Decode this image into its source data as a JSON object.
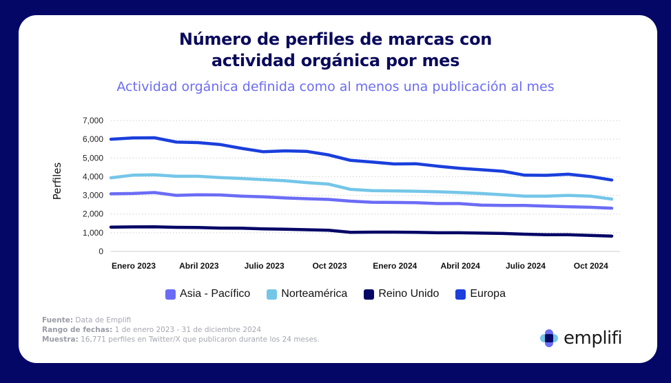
{
  "title_line1": "Número de perfiles de marcas con",
  "title_line2": "actividad orgánica por mes",
  "subtitle": "Actividad orgánica definida como al menos una publicación al mes",
  "footer": {
    "source_label": "Fuente:",
    "source_value": "Data de Emplifi",
    "range_label": "Rango de fechas:",
    "range_value": "1 de enero 2023 - 31 de diciembre 2024",
    "sample_label": "Muestra:",
    "sample_value": "16,771 perfiles en Twitter/X que publicaron durante los 24 meses."
  },
  "logo": {
    "text": "emplifi",
    "icon": "emplifi-logo-icon"
  },
  "chart_data": {
    "type": "line",
    "title": "Número de perfiles de marcas con actividad orgánica por mes",
    "subtitle": "Actividad orgánica definida como al menos una publicación al mes",
    "xlabel": "",
    "ylabel": "Perfiles",
    "ylim": [
      0,
      7000
    ],
    "yticks": [
      0,
      1000,
      2000,
      3000,
      4000,
      5000,
      6000,
      7000
    ],
    "ytick_labels": [
      "0",
      "1,000",
      "2,000",
      "3,000",
      "4,000",
      "5,000",
      "6,000",
      "7,000"
    ],
    "grid": true,
    "legend_position": "bottom",
    "x": [
      "Ene 2023",
      "Feb 2023",
      "Mar 2023",
      "Abr 2023",
      "May 2023",
      "Jun 2023",
      "Jul 2023",
      "Ago 2023",
      "Sep 2023",
      "Oct 2023",
      "Nov 2023",
      "Dic 2023",
      "Ene 2024",
      "Feb 2024",
      "Mar 2024",
      "Abr 2024",
      "May 2024",
      "Jun 2024",
      "Jul 2024",
      "Ago 2024",
      "Sep 2024",
      "Oct 2024",
      "Nov 2024",
      "Dic 2024"
    ],
    "xtick_indices": [
      0,
      3,
      6,
      9,
      12,
      15,
      18,
      21
    ],
    "xtick_labels": [
      "Enero 2023",
      "Abril 2023",
      "Julio 2023",
      "Oct 2023",
      "Enero 2024",
      "Abril 2024",
      "Julio 2024",
      "Oct 2024"
    ],
    "series": [
      {
        "name": "Asia - Pacífico",
        "color": "#6b6cf5",
        "values": [
          3080,
          3100,
          3150,
          3000,
          3030,
          3020,
          2960,
          2920,
          2860,
          2820,
          2780,
          2690,
          2630,
          2620,
          2610,
          2560,
          2560,
          2480,
          2460,
          2460,
          2420,
          2390,
          2360,
          2310
        ]
      },
      {
        "name": "Norteamérica",
        "color": "#74c6e8",
        "values": [
          3940,
          4080,
          4100,
          4020,
          4020,
          3950,
          3900,
          3840,
          3780,
          3680,
          3600,
          3320,
          3250,
          3240,
          3220,
          3190,
          3150,
          3100,
          3030,
          2960,
          2960,
          3000,
          2960,
          2800
        ]
      },
      {
        "name": "Reino Unido",
        "color": "#050766",
        "values": [
          1300,
          1310,
          1320,
          1290,
          1280,
          1250,
          1240,
          1210,
          1190,
          1160,
          1130,
          1020,
          1030,
          1030,
          1020,
          1000,
          1000,
          980,
          960,
          920,
          890,
          890,
          860,
          820
        ]
      },
      {
        "name": "Europa",
        "color": "#1a3fdc",
        "values": [
          6000,
          6070,
          6080,
          5850,
          5820,
          5720,
          5510,
          5330,
          5380,
          5350,
          5160,
          4870,
          4780,
          4680,
          4690,
          4560,
          4450,
          4370,
          4290,
          4080,
          4070,
          4130,
          4010,
          3820
        ]
      }
    ]
  }
}
